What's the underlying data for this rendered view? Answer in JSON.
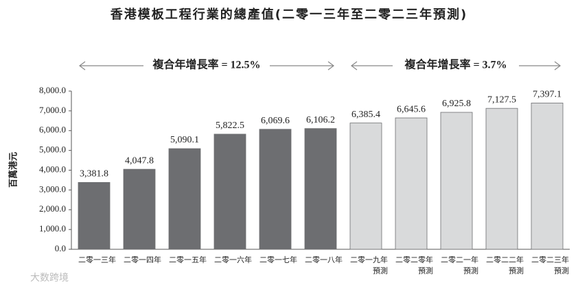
{
  "chart_data": {
    "type": "bar",
    "title": "香港模板工程行業的總產值(二零一三年至二零二三年預測)",
    "y_label": "百萬港元",
    "categories": [
      "二零一三年",
      "二零一四年",
      "二零一五年",
      "二零一六年",
      "二零一七年",
      "二零一八年",
      "二零一九年\n預測",
      "二零二零年\n預測",
      "二零二一年\n預測",
      "二零二二年\n預測",
      "二零二三年\n預測"
    ],
    "values": [
      3381.8,
      4047.8,
      5090.1,
      5822.5,
      6069.6,
      6106.2,
      6385.4,
      6645.6,
      6925.8,
      7127.5,
      7397.1
    ],
    "value_labels": [
      "3,381.8",
      "4,047.8",
      "5,090.1",
      "5,822.5",
      "6,069.6",
      "6,106.2",
      "6,385.4",
      "6,645.6",
      "6,925.8",
      "7,127.5",
      "7,397.1"
    ],
    "colors": [
      "#6d6e71",
      "#6d6e71",
      "#6d6e71",
      "#6d6e71",
      "#6d6e71",
      "#6d6e71",
      "#d9dadb",
      "#d9dadb",
      "#d9dadb",
      "#d9dadb",
      "#d9dadb"
    ],
    "ylim": [
      0,
      8000
    ],
    "yticks": [
      {
        "value": 0,
        "label": "0.0"
      },
      {
        "value": 1000,
        "label": "1,000.0"
      },
      {
        "value": 2000,
        "label": "2,000.0"
      },
      {
        "value": 3000,
        "label": "3,000.0"
      },
      {
        "value": 4000,
        "label": "4,000.0"
      },
      {
        "value": 5000,
        "label": "5,000.0"
      },
      {
        "value": 6000,
        "label": "6,000.0"
      },
      {
        "value": 7000,
        "label": "7,000.0"
      },
      {
        "value": 8000,
        "label": "8,000.0"
      }
    ],
    "annotations": [
      {
        "text": "複合年增長率 = 12.5%",
        "start": "二零一三年",
        "end": "二零一八年"
      },
      {
        "text": "複合年增長率 = 3.7%",
        "start": "二零一九年\n預測",
        "end": "二零二三年\n預測"
      }
    ],
    "watermark": "大数跨境"
  }
}
